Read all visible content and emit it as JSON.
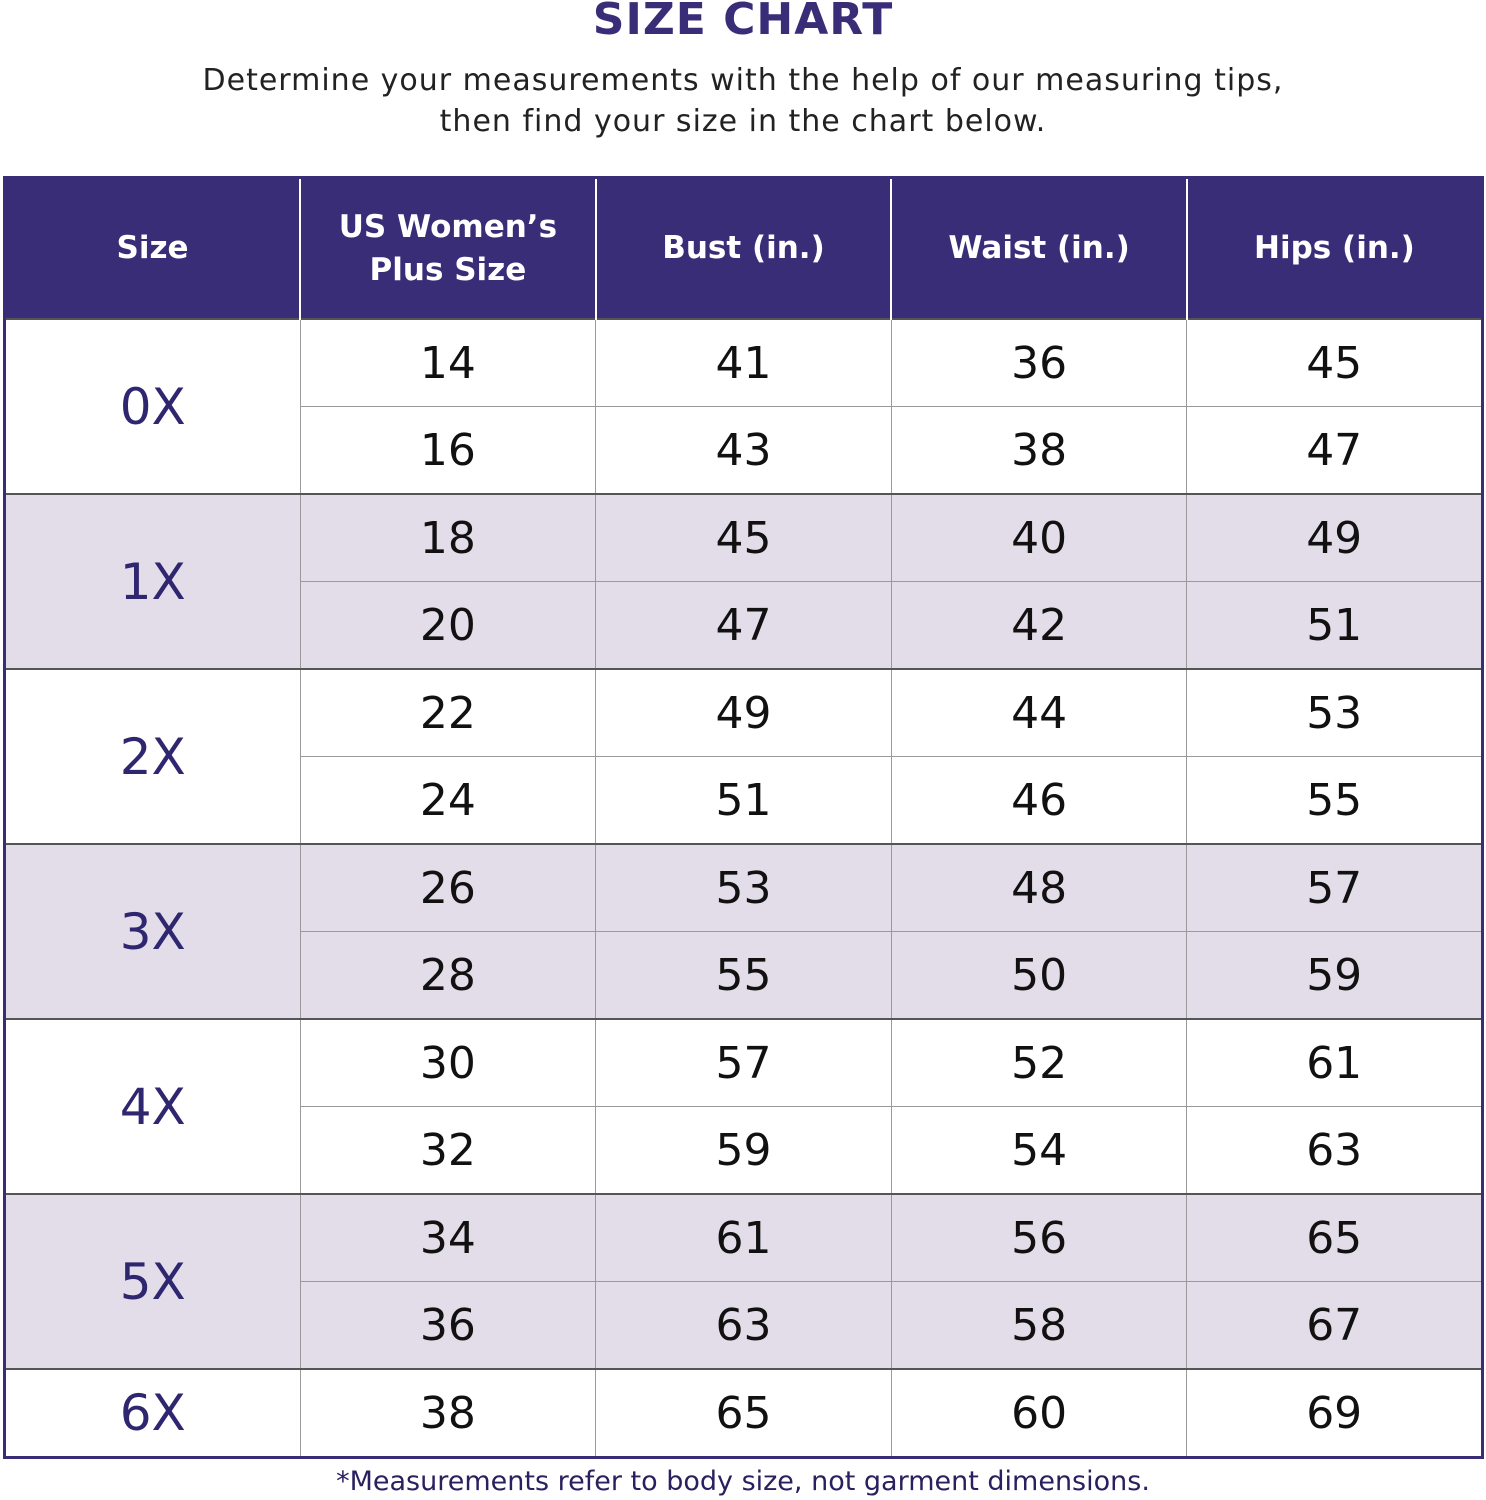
{
  "title": "SIZE CHART",
  "subtitle_line1": "Determine your measurements with the help of our measuring tips,",
  "subtitle_line2": "then find your size in the chart below.",
  "footnote": "*Measurements refer to body size, not garment dimensions.",
  "colors": {
    "header": "#3a2d78",
    "shaded_row": "#e2dde9",
    "size_text": "#2f2670"
  },
  "chart_data": {
    "type": "table",
    "columns": [
      "Size",
      "US Women’s Plus Size",
      "Bust (in.)",
      "Waist (in.)",
      "Hips (in.)"
    ],
    "groups": [
      {
        "size": "0X",
        "rows": [
          [
            "14",
            "41",
            "36",
            "45"
          ],
          [
            "16",
            "43",
            "38",
            "47"
          ]
        ]
      },
      {
        "size": "1X",
        "rows": [
          [
            "18",
            "45",
            "40",
            "49"
          ],
          [
            "20",
            "47",
            "42",
            "51"
          ]
        ]
      },
      {
        "size": "2X",
        "rows": [
          [
            "22",
            "49",
            "44",
            "53"
          ],
          [
            "24",
            "51",
            "46",
            "55"
          ]
        ]
      },
      {
        "size": "3X",
        "rows": [
          [
            "26",
            "53",
            "48",
            "57"
          ],
          [
            "28",
            "55",
            "50",
            "59"
          ]
        ]
      },
      {
        "size": "4X",
        "rows": [
          [
            "30",
            "57",
            "52",
            "61"
          ],
          [
            "32",
            "59",
            "54",
            "63"
          ]
        ]
      },
      {
        "size": "5X",
        "rows": [
          [
            "34",
            "61",
            "56",
            "65"
          ],
          [
            "36",
            "63",
            "58",
            "67"
          ]
        ]
      },
      {
        "size": "6X",
        "rows": [
          [
            "38",
            "65",
            "60",
            "69"
          ]
        ]
      }
    ]
  }
}
